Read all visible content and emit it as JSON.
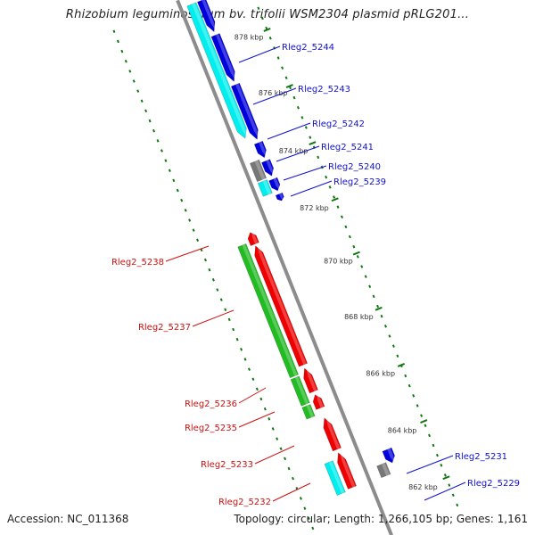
{
  "title": "Rhizobium leguminosarum bv. trifolii WSM2304 plasmid pRLG201...",
  "footer": {
    "accession": "Accession: NC_011368",
    "summary": "Topology: circular; Length: 1,266,105 bp; Genes: 1,161"
  },
  "colors": {
    "backbone": "#8c8c8c",
    "forward_cds": "#0000dd",
    "forward_rna": "#00eeee",
    "reverse_cds": "#ee0000",
    "reverse_rna": "#22bb22",
    "pseudo": "#777777",
    "ticks": "#117711",
    "label_forward": "#1111cc",
    "label_reverse": "#cc1111"
  },
  "scale_labels": [
    "878 kbp",
    "876 kbp",
    "874 kbp",
    "872 kbp",
    "870 kbp",
    "868 kbp",
    "866 kbp",
    "864 kbp",
    "862 kbp"
  ],
  "forward_genes": [
    "Rleg2_5244",
    "Rleg2_5243",
    "Rleg2_5242",
    "Rleg2_5241",
    "Rleg2_5240",
    "Rleg2_5239",
    "Rleg2_5231",
    "Rleg2_5229"
  ],
  "reverse_genes": [
    "Rleg2_5238",
    "Rleg2_5237",
    "Rleg2_5236",
    "Rleg2_5235",
    "Rleg2_5233",
    "Rleg2_5232"
  ]
}
